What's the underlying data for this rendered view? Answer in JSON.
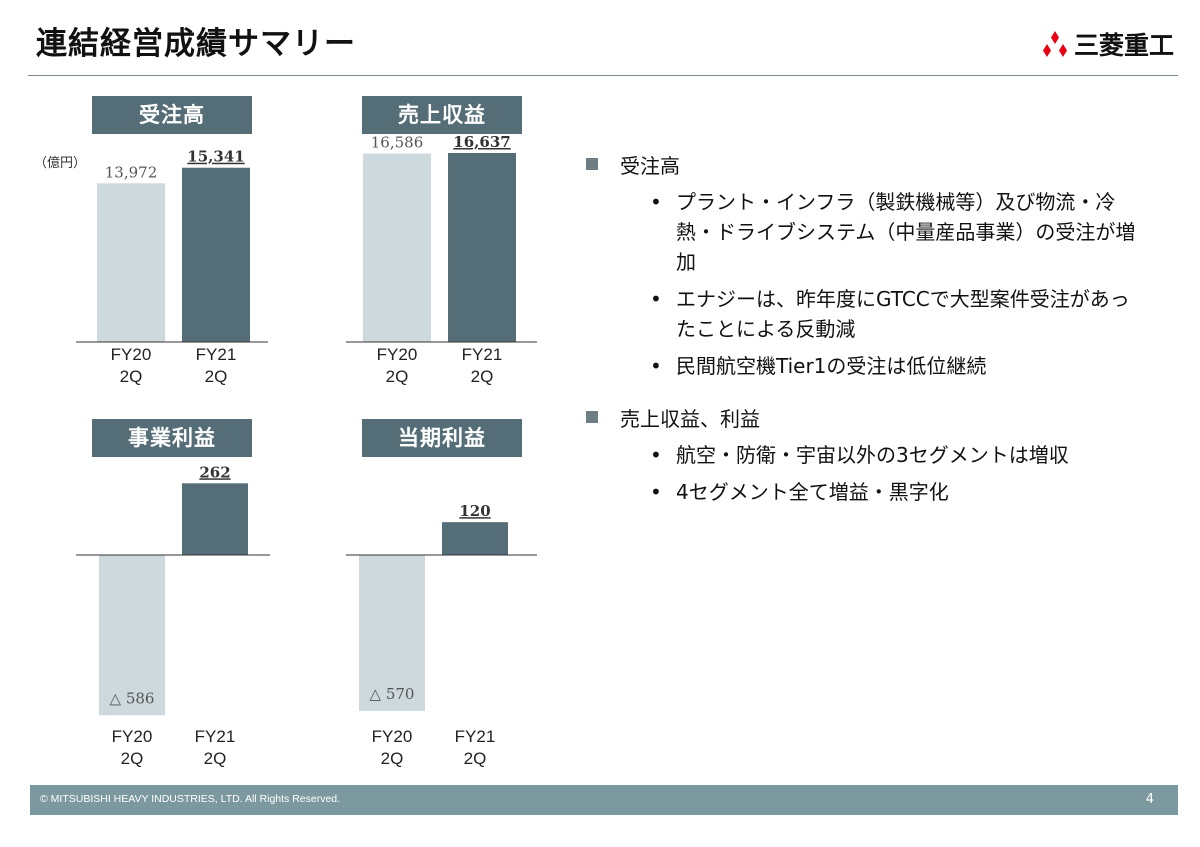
{
  "header": {
    "title": "連結経営成績サマリー",
    "logo_text": "三菱重工"
  },
  "unit_label": "（億円）",
  "colors": {
    "prior": "#cdd9dd",
    "current": "#546d77",
    "title_box": "#546d77",
    "footer": "#7c99a0"
  },
  "chart_data": [
    {
      "type": "bar",
      "title": "受注高",
      "categories": [
        "FY20\n2Q",
        "FY21\n2Q"
      ],
      "values": [
        13972,
        15341
      ],
      "labels": [
        "13,972",
        "15,341"
      ],
      "ylim": [
        0,
        17000
      ]
    },
    {
      "type": "bar",
      "title": "売上収益",
      "categories": [
        "FY20\n2Q",
        "FY21\n2Q"
      ],
      "values": [
        16586,
        16637
      ],
      "labels": [
        "16,586",
        "16,637"
      ],
      "ylim": [
        0,
        17000
      ]
    },
    {
      "type": "bar",
      "title": "事業利益",
      "categories": [
        "FY20\n2Q",
        "FY21\n2Q"
      ],
      "values": [
        -586,
        262
      ],
      "labels": [
        "△ 586",
        "262"
      ],
      "ylim": [
        -586,
        262
      ]
    },
    {
      "type": "bar",
      "title": "当期利益",
      "categories": [
        "FY20\n2Q",
        "FY21\n2Q"
      ],
      "values": [
        -570,
        120
      ],
      "labels": [
        "△ 570",
        "120"
      ],
      "ylim": [
        -586,
        262
      ]
    }
  ],
  "bullets": [
    {
      "heading": "受注高",
      "items": [
        "プラント・インフラ（製鉄機械等）及び物流・冷熱・ドライブシステム（中量産品事業）の受注が増加",
        "エナジーは、昨年度にGTCCで大型案件受注があったことによる反動減",
        "民間航空機Tier1の受注は低位継続"
      ]
    },
    {
      "heading": "売上収益、利益",
      "items": [
        "航空・防衛・宇宙以外の3セグメントは増収",
        "4セグメント全て増益・黒字化"
      ]
    }
  ],
  "footer": {
    "copyright": "© MITSUBISHI HEAVY INDUSTRIES, LTD.  All Rights Reserved.",
    "page": "4"
  }
}
